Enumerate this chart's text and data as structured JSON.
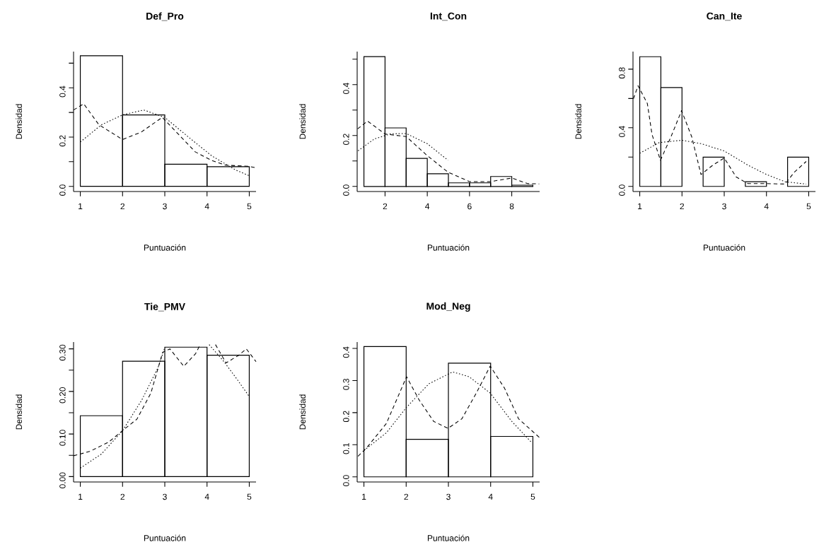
{
  "chart_data": [
    {
      "type": "histogram",
      "title": "Def_Pro",
      "xlabel": "Puntuación",
      "ylabel": "Densidad",
      "color": "#000000",
      "bins": [
        1,
        2,
        3,
        4,
        5
      ],
      "values": [
        0.53,
        0.29,
        0.09,
        0.08
      ],
      "xlim": [
        0.84,
        5.16
      ],
      "ylim": [
        -0.021,
        0.547
      ],
      "xticks": [
        1,
        2,
        3,
        4,
        5
      ],
      "yticks": [
        {
          "value": 0,
          "label": "0.0"
        },
        {
          "value": 0.1,
          "label": null
        },
        {
          "value": 0.2,
          "label": "0.2"
        },
        {
          "value": 0.3,
          "label": null
        },
        {
          "value": 0.4,
          "label": "0.4"
        },
        {
          "value": 0.5,
          "label": null
        }
      ],
      "series": [
        {
          "type": "line",
          "line_style": "dashed",
          "color": "#000000",
          "x": [
            0.84,
            1.08,
            1.44,
            2.0,
            2.44,
            2.94,
            3.33,
            3.72,
            4.11,
            4.44,
            5.0,
            5.16
          ],
          "values": [
            0.31,
            0.335,
            0.25,
            0.19,
            0.22,
            0.28,
            0.21,
            0.14,
            0.105,
            0.086,
            0.081,
            0.075
          ]
        },
        {
          "type": "line",
          "line_style": "dotted",
          "color": "#000000",
          "x": [
            1.0,
            1.5,
            2.0,
            2.5,
            3.0,
            3.56,
            4.11,
            4.67,
            5.0
          ],
          "values": [
            0.18,
            0.25,
            0.29,
            0.31,
            0.28,
            0.2,
            0.124,
            0.067,
            0.043
          ]
        }
      ]
    },
    {
      "type": "histogram",
      "title": "Int_Con",
      "xlabel": "Puntuación",
      "ylabel": "Densidad",
      "color": "#000000",
      "bins": [
        1,
        2,
        3,
        4,
        5,
        6,
        7,
        8,
        9
      ],
      "values": [
        0.51,
        0.23,
        0.11,
        0.05,
        0.014,
        0.014,
        0.039,
        0.005
      ],
      "xlim": [
        0.68,
        9.32
      ],
      "ylim": [
        -0.02,
        0.53
      ],
      "xticks": [
        2,
        4,
        6,
        8
      ],
      "yticks": [
        {
          "value": 0,
          "label": "0.0"
        },
        {
          "value": 0.1,
          "label": null
        },
        {
          "value": 0.2,
          "label": "0.2"
        },
        {
          "value": 0.3,
          "label": null
        },
        {
          "value": 0.4,
          "label": "0.4"
        },
        {
          "value": 0.5,
          "label": null
        }
      ],
      "series": [
        {
          "type": "line",
          "line_style": "dashed",
          "color": "#000000",
          "x": [
            0.7,
            1.17,
            2.0,
            3.0,
            4.0,
            4.98,
            6.0,
            7.0,
            8.0,
            8.75,
            9.3
          ],
          "values": [
            0.226,
            0.257,
            0.206,
            0.196,
            0.121,
            0.056,
            0.019,
            0.019,
            0.033,
            0.011,
            0.01
          ]
        },
        {
          "type": "line",
          "line_style": "dotted",
          "color": "#000000",
          "x": [
            0.72,
            1.5,
            2.28,
            3.0,
            4.0,
            4.98
          ],
          "values": [
            0.14,
            0.187,
            0.207,
            0.208,
            0.168,
            0.103
          ]
        }
      ]
    },
    {
      "type": "histogram",
      "title": "Can_Ite",
      "xlabel": "Puntuación",
      "ylabel": "Densidad",
      "color": "#000000",
      "bins": [
        1,
        1.5,
        2,
        2.5,
        3,
        3.5,
        4,
        4.5,
        5
      ],
      "values": [
        0.885,
        0.675,
        0,
        0.2,
        0,
        0.032,
        0,
        0.2
      ],
      "xlim": [
        0.84,
        5.16
      ],
      "ylim": [
        -0.035,
        0.92
      ],
      "xticks": [
        1,
        2,
        3,
        4,
        5
      ],
      "yticks": [
        {
          "value": 0,
          "label": "0.0"
        },
        {
          "value": 0.2,
          "label": null
        },
        {
          "value": 0.4,
          "label": "0.4"
        },
        {
          "value": 0.6,
          "label": null
        },
        {
          "value": 0.8,
          "label": "0.8"
        }
      ],
      "series": [
        {
          "type": "line",
          "line_style": "dashed",
          "color": "#000000",
          "x": [
            0.85,
            0.96,
            1.18,
            1.29,
            1.49,
            1.74,
            1.99,
            2.23,
            2.45,
            2.73,
            3.0,
            3.28,
            3.56,
            4.0,
            4.44,
            4.66,
            4.94
          ],
          "values": [
            0.598,
            0.687,
            0.565,
            0.355,
            0.178,
            0.339,
            0.517,
            0.339,
            0.081,
            0.145,
            0.194,
            0.065,
            0.019,
            0.019,
            0.016,
            0.097,
            0.17
          ]
        },
        {
          "type": "line",
          "line_style": "dotted",
          "color": "#000000",
          "x": [
            1.0,
            1.46,
            2.0,
            2.46,
            3.0,
            3.56,
            4.0,
            4.44,
            4.94
          ],
          "values": [
            0.226,
            0.299,
            0.315,
            0.291,
            0.242,
            0.145,
            0.081,
            0.032,
            0.016
          ]
        }
      ]
    },
    {
      "type": "histogram",
      "title": "Tie_PMV",
      "xlabel": "Puntuación",
      "ylabel": "Densidad",
      "color": "#000000",
      "bins": [
        1,
        2,
        3,
        4,
        5
      ],
      "values": [
        0.143,
        0.271,
        0.304,
        0.285
      ],
      "xlim": [
        0.84,
        5.16
      ],
      "ylim": [
        -0.0126,
        0.316
      ],
      "xticks": [
        1,
        2,
        3,
        4,
        5
      ],
      "yticks": [
        {
          "value": 0,
          "label": "0.00"
        },
        {
          "value": 0.05,
          "label": null
        },
        {
          "value": 0.1,
          "label": "0.10"
        },
        {
          "value": 0.15,
          "label": null
        },
        {
          "value": 0.2,
          "label": "0.20"
        },
        {
          "value": 0.25,
          "label": null
        },
        {
          "value": 0.3,
          "label": "0.30"
        }
      ],
      "series": [
        {
          "type": "line",
          "line_style": "dashed",
          "color": "#000000",
          "x": [
            0.84,
            1.22,
            1.67,
            2.0,
            2.34,
            2.67,
            2.95,
            3.12,
            3.45,
            3.73,
            3.84,
            4.0,
            4.2,
            4.45,
            4.75,
            4.93,
            5.16
          ],
          "values": [
            0.049,
            0.059,
            0.081,
            0.108,
            0.135,
            0.196,
            0.292,
            0.3,
            0.259,
            0.289,
            0.31,
            null,
            0.31,
            0.267,
            0.285,
            0.3,
            0.27
          ]
        },
        {
          "type": "line",
          "line_style": "dotted",
          "color": "#000000",
          "x": [
            1.0,
            1.5,
            2.0,
            2.45,
            2.84,
            3.0,
            3.5,
            4.05,
            4.4,
            4.7,
            5.0
          ],
          "values": [
            0.02,
            0.053,
            0.108,
            0.179,
            0.256,
            0.303,
            null,
            0.31,
            0.27,
            0.23,
            0.188
          ]
        }
      ]
    },
    {
      "type": "histogram",
      "title": "Mod_Neg",
      "xlabel": "Puntuación",
      "ylabel": "Densidad",
      "color": "#000000",
      "bins": [
        1,
        2,
        3,
        4,
        5
      ],
      "values": [
        0.406,
        0.117,
        0.354,
        0.126
      ],
      "xlim": [
        0.84,
        5.16
      ],
      "ylim": [
        -0.016,
        0.42
      ],
      "xticks": [
        1,
        2,
        3,
        4,
        5
      ],
      "yticks": [
        {
          "value": 0,
          "label": "0.0"
        },
        {
          "value": 0.1,
          "label": "0.1"
        },
        {
          "value": 0.2,
          "label": "0.2"
        },
        {
          "value": 0.3,
          "label": "0.3"
        },
        {
          "value": 0.4,
          "label": "0.4"
        }
      ],
      "series": [
        {
          "type": "line",
          "line_style": "dashed",
          "color": "#000000",
          "x": [
            0.86,
            1.08,
            1.53,
            2.01,
            2.31,
            2.65,
            2.99,
            3.32,
            3.66,
            3.99,
            4.33,
            4.66,
            5.16
          ],
          "values": [
            0.064,
            0.093,
            0.166,
            0.312,
            0.239,
            0.173,
            0.151,
            0.181,
            0.261,
            0.345,
            0.276,
            0.181,
            0.122
          ]
        },
        {
          "type": "line",
          "line_style": "dotted",
          "color": "#000000",
          "x": [
            1.0,
            1.53,
            2.01,
            2.54,
            3.1,
            3.49,
            3.99,
            4.5,
            4.97
          ],
          "values": [
            0.082,
            0.137,
            0.217,
            0.29,
            0.327,
            0.312,
            0.261,
            0.173,
            0.107
          ]
        }
      ]
    }
  ]
}
